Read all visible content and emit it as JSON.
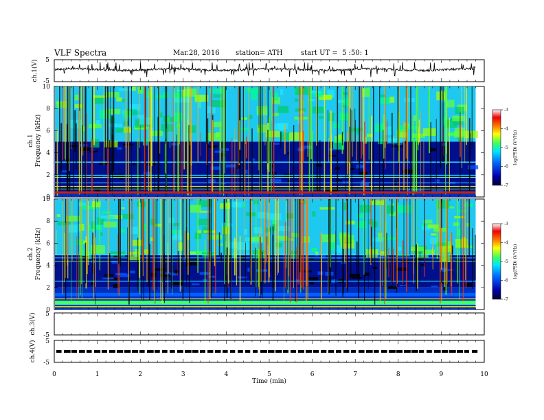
{
  "header": {
    "title": "VLF Spectra",
    "date": "Mar.28, 2016",
    "station": "station= ATH",
    "start": "start UT =  5 :50: 1"
  },
  "chart_data": [
    {
      "type": "line",
      "panel": "ch.1 waveform",
      "ylabel": "ch.1(V)",
      "ylim": [
        -5,
        5
      ],
      "yticks": [
        "5",
        "-5"
      ],
      "xlim": [
        0,
        10
      ],
      "baseline": 0.5,
      "data_extent_min": 9.8,
      "color": "#000000"
    },
    {
      "type": "heatmap",
      "panel": "ch.1 spectrogram",
      "ylabel_1": "ch.1",
      "ylabel_2": "Frequency (kHz)",
      "ylim": [
        0,
        10
      ],
      "yticks": [
        "0",
        "2",
        "4",
        "6",
        "8",
        "10"
      ],
      "xlim": [
        0,
        10
      ],
      "data_extent_min": 9.8,
      "colorbar": {
        "label": "log(PSD) (V²/Hz)",
        "range": [
          -7,
          -3
        ],
        "ticks": [
          "-7",
          "-6",
          "-5",
          "-4",
          "-3"
        ]
      },
      "quiet_band_khz": [
        0.5,
        5
      ],
      "noise_band_khz": [
        5,
        10
      ]
    },
    {
      "type": "heatmap",
      "panel": "ch.2 spectrogram",
      "ylabel_1": "ch.2",
      "ylabel_2": "Frequency (kHz)",
      "ylim": [
        0,
        10
      ],
      "yticks": [
        "0",
        "2",
        "4",
        "6",
        "8",
        "10"
      ],
      "xlim": [
        0,
        10
      ],
      "data_extent_min": 9.8,
      "colorbar": {
        "label": "log(PSD) (V²/Hz)",
        "range": [
          -7,
          -3
        ],
        "ticks": [
          "-7",
          "-6",
          "-5",
          "-4",
          "-3"
        ]
      },
      "quiet_band_khz": [
        2,
        5
      ],
      "noise_band_khz": [
        5,
        10
      ]
    },
    {
      "type": "line",
      "panel": "ch.3 waveform",
      "ylabel": "ch.3(V)",
      "ylim": [
        -5,
        5
      ],
      "yticks": [
        "5",
        "-5"
      ],
      "xlim": [
        0,
        10
      ],
      "values": []
    },
    {
      "type": "line",
      "panel": "ch.4 waveform",
      "ylabel": "ch.4(V)",
      "ylim": [
        -5,
        5
      ],
      "yticks": [
        "5",
        "-5"
      ],
      "xlim": [
        0,
        10
      ],
      "level": 0,
      "style": "dashed",
      "data_extent_min": 9.8
    }
  ],
  "xaxis": {
    "label": "Time (min)",
    "ticks": [
      "0",
      "1",
      "2",
      "3",
      "4",
      "5",
      "6",
      "7",
      "8",
      "9",
      "10"
    ],
    "range": [
      0,
      10
    ]
  }
}
